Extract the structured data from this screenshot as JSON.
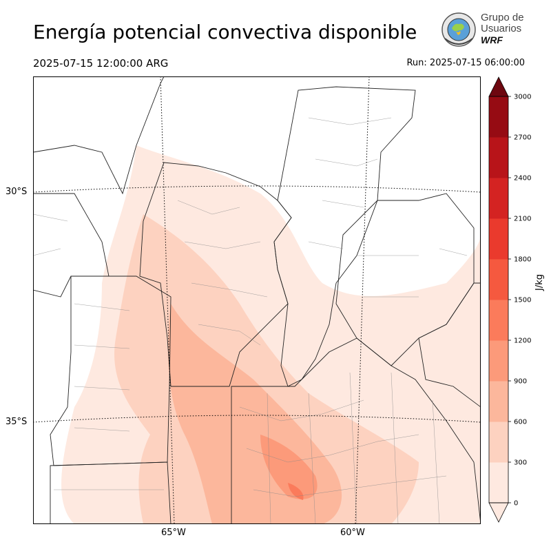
{
  "header": {
    "title": "Energía potencial convectiva disponible",
    "valid_time": "2025-07-15 12:00:00 ARG",
    "run_time": "Run: 2025-07-15 06:00:00"
  },
  "logo": {
    "line1": "Grupo de",
    "line2": "Usuarios",
    "line3": "WRF"
  },
  "map": {
    "lat_labels": [
      "30°S",
      "35°S"
    ],
    "lon_labels": [
      "65°W",
      "60°W"
    ]
  },
  "colorbar": {
    "units": "J/kg",
    "ticks": [
      "0",
      "300",
      "600",
      "900",
      "1200",
      "1500",
      "1800",
      "2100",
      "2400",
      "2700",
      "3000"
    ],
    "colors": [
      "#fee9e0",
      "#fdd2c0",
      "#fcb79c",
      "#fc9a7a",
      "#fb7b5b",
      "#f5593f",
      "#ea3a2d",
      "#d42322",
      "#b81419",
      "#960b13",
      "#6e0710"
    ]
  }
}
